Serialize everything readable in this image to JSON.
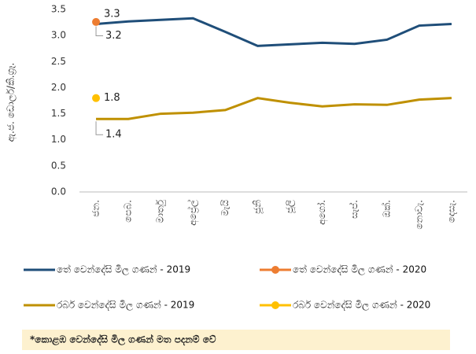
{
  "chart_data": {
    "type": "line",
    "y_label": "ඇ.ජ. ඩොලර්/කි.ග්‍රෑ.",
    "categories": [
      "ජන.",
      "පෙබ.",
      "මාර්තු",
      "අප්‍රේල්",
      "මැයි",
      "ජූනි",
      "ජූලි",
      "අගෝ.",
      "සැප්.",
      "ඔක්.",
      "නොවැ.",
      "දෙසැ."
    ],
    "series": [
      {
        "name": "තේ වෙන්දේසි මිල ගණන් - 2019",
        "color": "#1f4e79",
        "values": [
          3.22,
          3.27,
          3.3,
          3.33,
          3.07,
          2.8,
          2.83,
          2.86,
          2.84,
          2.92,
          3.19,
          3.22
        ],
        "value_labels": [
          "3.2",
          null,
          null,
          null,
          null,
          null,
          null,
          null,
          null,
          null,
          null,
          null
        ]
      },
      {
        "name": "තේ වෙන්දේසි මිල ගණන් - 2020",
        "color": "#ed7d31",
        "values": [
          3.26,
          null,
          null,
          null,
          null,
          null,
          null,
          null,
          null,
          null,
          null,
          null
        ],
        "value_labels": [
          "3.3",
          null,
          null,
          null,
          null,
          null,
          null,
          null,
          null,
          null,
          null,
          null
        ]
      },
      {
        "name": "රබර් වෙන්දේසි මිල ගණන් - 2019",
        "color": "#bf9000",
        "values": [
          1.4,
          1.4,
          1.5,
          1.52,
          1.57,
          1.8,
          1.71,
          1.64,
          1.68,
          1.67,
          1.77,
          1.8
        ],
        "value_labels": [
          "1.4",
          null,
          null,
          null,
          null,
          null,
          null,
          null,
          null,
          null,
          null,
          null
        ]
      },
      {
        "name": "රබර් වෙන්දේසි මිල ගණන් - 2020",
        "color": "#ffc000",
        "values": [
          1.8,
          null,
          null,
          null,
          null,
          null,
          null,
          null,
          null,
          null,
          null,
          null
        ],
        "value_labels": [
          "1.8",
          null,
          null,
          null,
          null,
          null,
          null,
          null,
          null,
          null,
          null,
          null
        ]
      }
    ],
    "ylim": [
      0,
      3.5
    ],
    "yticks": [
      {
        "value": 0,
        "label": "0.0"
      },
      0.5,
      {
        "value": 1,
        "label": "1.0"
      },
      1.5,
      {
        "value": 2,
        "label": "2.0"
      },
      2.5,
      {
        "value": 3,
        "label": "3.0"
      },
      3.5
    ],
    "grid": false,
    "note": "*කොළඹ වෙන්දේසි මිල ගණන් මත පදනම් වේ"
  }
}
